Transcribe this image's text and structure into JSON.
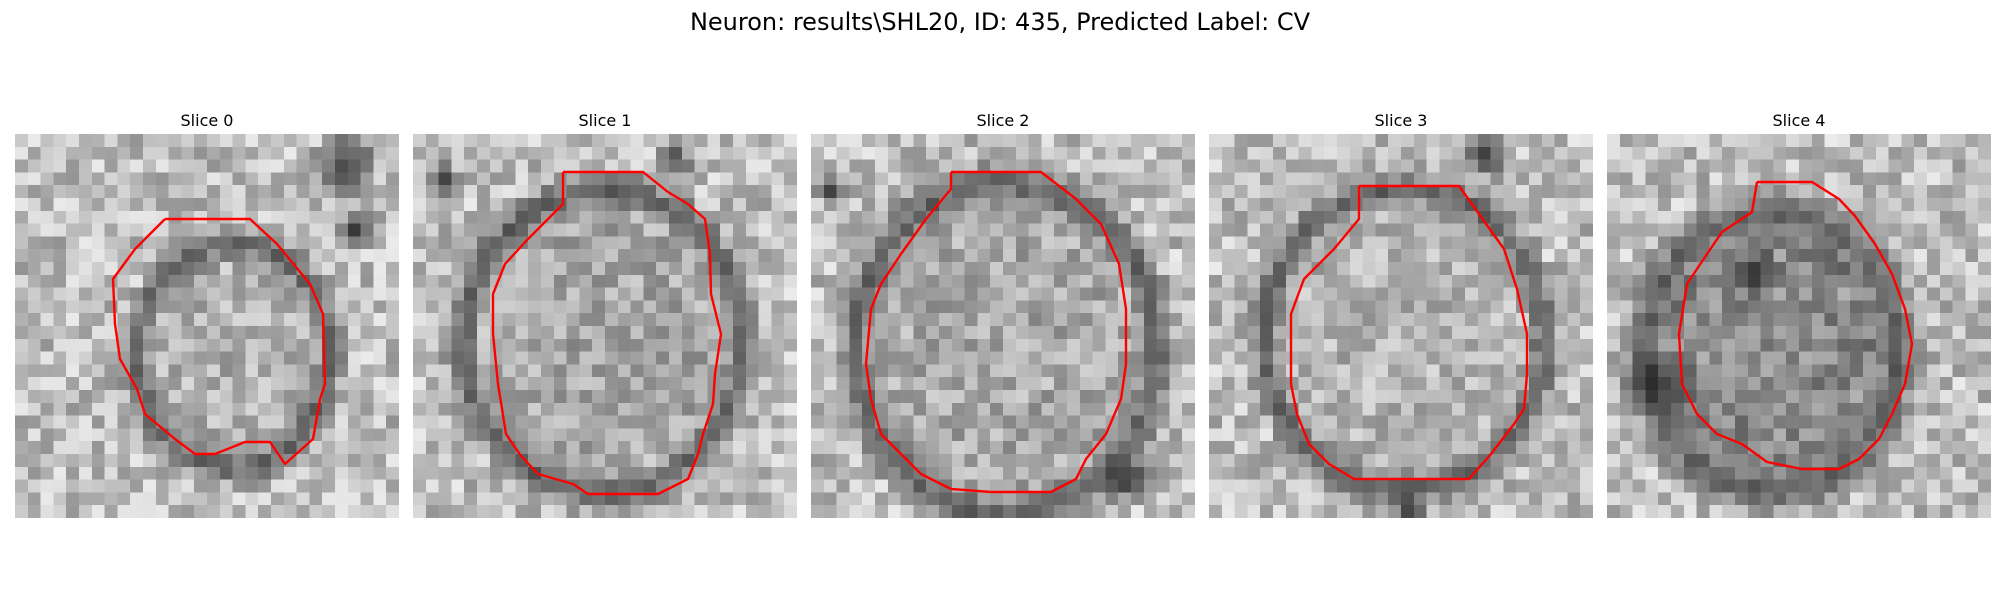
{
  "figure": {
    "title": "Neuron: results\\SHL20, ID: 435, Predicted Label: CV"
  },
  "contour_color": "#ff0000",
  "panels": [
    {
      "title": "Slice 0"
    },
    {
      "title": "Slice 1"
    },
    {
      "title": "Slice 2"
    },
    {
      "title": "Slice 3"
    },
    {
      "title": "Slice 4"
    }
  ]
}
